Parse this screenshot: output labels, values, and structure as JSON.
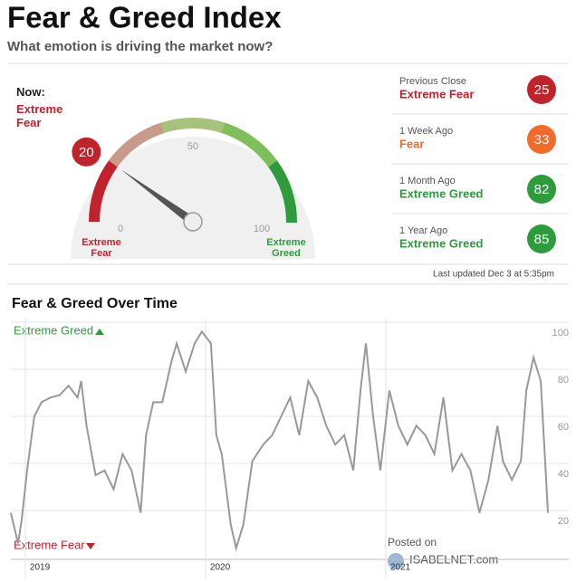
{
  "header": {
    "title": "Fear & Greed Index",
    "subtitle": "What emotion is driving the market now?"
  },
  "gauge": {
    "now_label": "Now:",
    "rating": "Extreme Fear",
    "value": 20,
    "color": "#c0232c",
    "ticks": [
      0,
      50,
      100
    ],
    "min_label": "Extreme Fear",
    "max_label": "Extreme Greed",
    "min_color": "#c0232c",
    "max_color": "#2e9c3c"
  },
  "history": [
    {
      "label": "Previous Close",
      "rating": "Extreme Fear",
      "value": 25,
      "color": "#c0232c"
    },
    {
      "label": "1 Week Ago",
      "rating": "Fear",
      "value": 33,
      "color": "#f26b2b"
    },
    {
      "label": "1 Month Ago",
      "rating": "Extreme Greed",
      "value": 82,
      "color": "#2e9c3c"
    },
    {
      "label": "1 Year Ago",
      "rating": "Extreme Greed",
      "value": 85,
      "color": "#2e9c3c"
    }
  ],
  "last_updated": "Last updated Dec 3 at 5:35pm",
  "chart_data": {
    "type": "line",
    "title": "Fear & Greed Over Time",
    "top_annotation": "Extreme Greed",
    "bottom_annotation": "Extreme Fear",
    "x": [
      2018.92,
      2018.96,
      2018.98,
      2019.01,
      2019.05,
      2019.09,
      2019.14,
      2019.19,
      2019.24,
      2019.29,
      2019.31,
      2019.34,
      2019.39,
      2019.44,
      2019.49,
      2019.54,
      2019.59,
      2019.64,
      2019.67,
      2019.71,
      2019.76,
      2019.81,
      2019.84,
      2019.89,
      2019.94,
      2019.98,
      2020.03,
      2020.06,
      2020.09,
      2020.14,
      2020.17,
      2020.21,
      2020.26,
      2020.32,
      2020.37,
      2020.42,
      2020.47,
      2020.52,
      2020.57,
      2020.62,
      2020.67,
      2020.72,
      2020.77,
      2020.82,
      2020.86,
      2020.89,
      2020.93,
      2020.97,
      2021.02,
      2021.07,
      2021.12,
      2021.17,
      2021.22,
      2021.27,
      2021.32,
      2021.37,
      2021.42,
      2021.47,
      2021.52,
      2021.57,
      2021.62,
      2021.65,
      2021.7,
      2021.75,
      2021.78,
      2021.82,
      2021.86,
      2021.89,
      2021.9
    ],
    "series": [
      {
        "color": "#999999",
        "values": [
          19,
          6,
          16,
          37,
          60,
          66,
          68,
          69,
          73,
          68,
          75,
          56,
          35,
          37,
          29,
          44,
          37,
          19,
          52,
          66,
          66,
          83,
          91,
          79,
          91,
          96,
          91,
          52,
          44,
          14,
          4,
          14,
          41,
          48,
          52,
          60,
          68,
          52,
          75,
          68,
          56,
          48,
          52,
          37,
          71,
          91,
          60,
          37,
          71,
          56,
          48,
          56,
          52,
          44,
          68,
          37,
          44,
          37,
          19,
          33,
          56,
          41,
          33,
          41,
          71,
          85,
          75,
          33,
          19
        ]
      }
    ],
    "xlim": [
      2018.92,
      2021.92
    ],
    "xticks": [
      2019,
      2020,
      2021
    ],
    "ylim": [
      0,
      100
    ],
    "yticks": [
      20,
      40,
      60,
      80,
      100
    ],
    "grid": true
  },
  "watermark": {
    "posted_on": "Posted on",
    "site": "ISABELNET.com"
  }
}
